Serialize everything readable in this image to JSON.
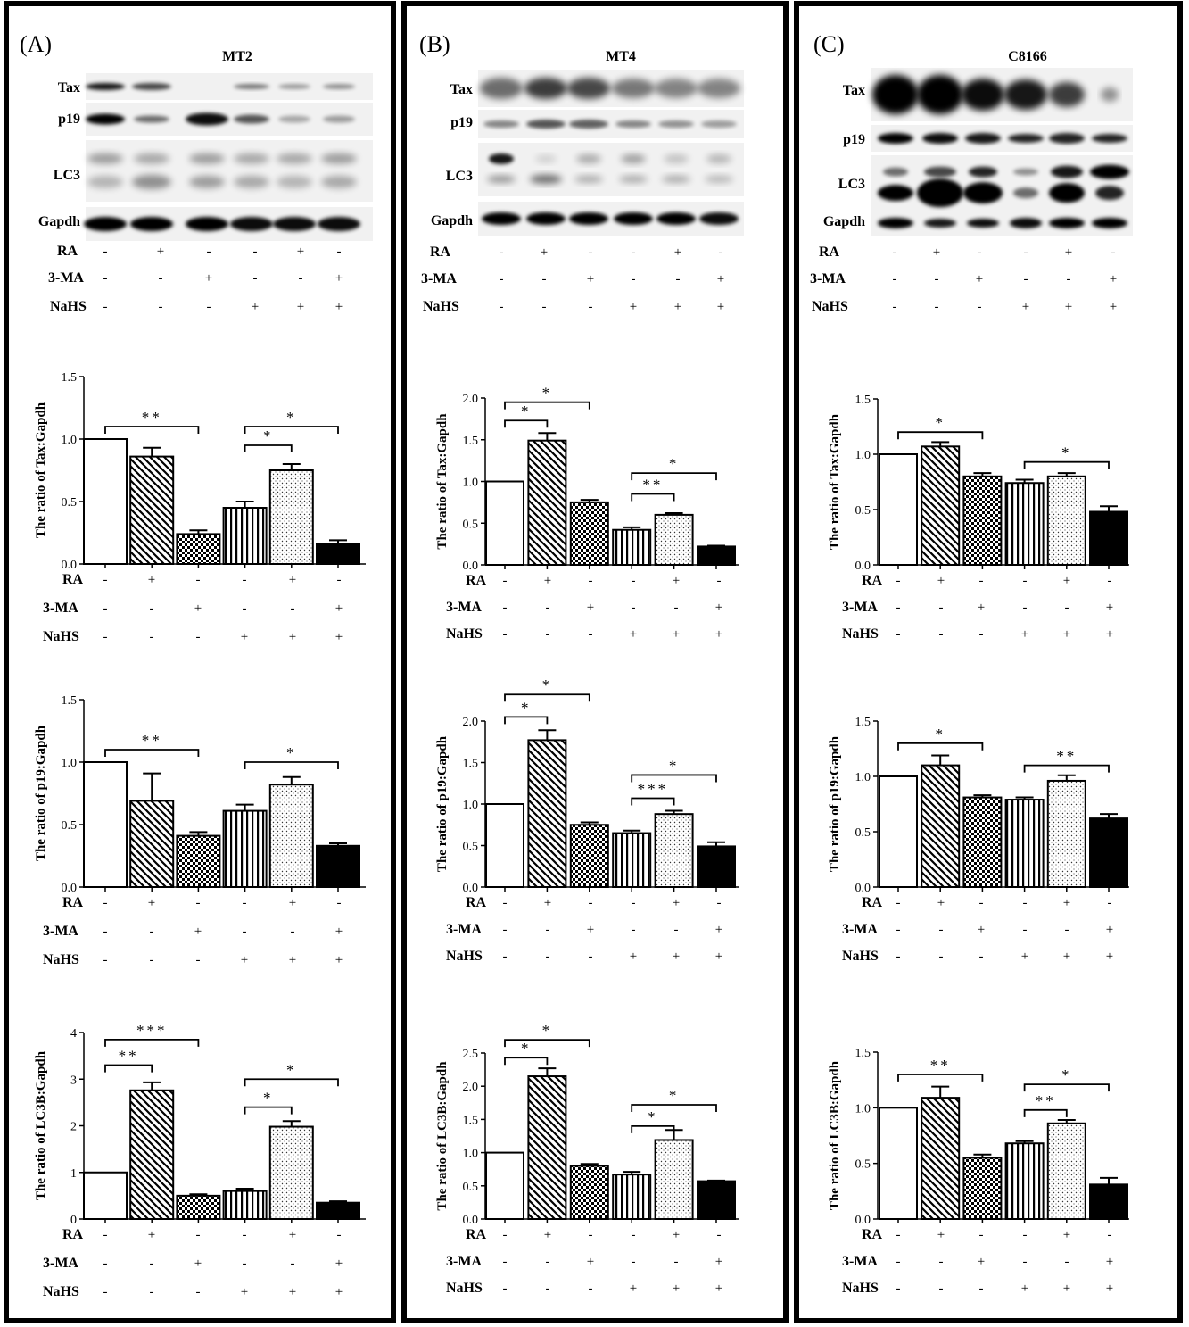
{
  "panels": [
    {
      "letter": "(A)",
      "cell_line": "MT2",
      "blot_labels": [
        "Tax",
        "p19",
        "LC3",
        "Gapdh"
      ],
      "treatment_labels": [
        "RA",
        "3-MA",
        "NaHS"
      ],
      "treatments": [
        [
          "-",
          "+",
          "-",
          "-",
          "+",
          "-"
        ],
        [
          "-",
          "-",
          "+",
          "-",
          "-",
          "+"
        ],
        [
          "-",
          "-",
          "-",
          "+",
          "+",
          "+"
        ]
      ]
    },
    {
      "letter": "(B)",
      "cell_line": "MT4",
      "blot_labels": [
        "Tax",
        "p19",
        "LC3",
        "Gapdh"
      ],
      "treatment_labels": [
        "RA",
        "3-MA",
        "NaHS"
      ],
      "treatments": [
        [
          "-",
          "+",
          "-",
          "-",
          "+",
          "-"
        ],
        [
          "-",
          "-",
          "+",
          "-",
          "-",
          "+"
        ],
        [
          "-",
          "-",
          "-",
          "+",
          "+",
          "+"
        ]
      ]
    },
    {
      "letter": "(C)",
      "cell_line": "C8166",
      "blot_labels": [
        "Tax",
        "p19",
        "LC3",
        "Gapdh"
      ],
      "treatment_labels": [
        "RA",
        "3-MA",
        "NaHS"
      ],
      "treatments": [
        [
          "-",
          "+",
          "-",
          "-",
          "+",
          "-"
        ],
        [
          "-",
          "-",
          "+",
          "-",
          "-",
          "+"
        ],
        [
          "-",
          "-",
          "-",
          "+",
          "+",
          "+"
        ]
      ]
    }
  ],
  "bar_fills": [
    "white",
    "diagonal-hatch",
    "checker",
    "vertical-stripes",
    "dotted",
    "black"
  ],
  "chart_data": [
    {
      "type": "bar",
      "panel": "(A)",
      "ylabel": "The ratio of Tax:Gapdh",
      "ylim": [
        0,
        1.5
      ],
      "yticks": [
        "0.0",
        "0.5",
        "1.0",
        "1.5"
      ],
      "values": [
        1.0,
        0.86,
        0.24,
        0.45,
        0.75,
        0.16
      ],
      "errors": [
        0,
        0.07,
        0.03,
        0.05,
        0.05,
        0.03
      ],
      "significance": [
        {
          "from": 1,
          "to": 3,
          "label": "**",
          "y": 1.1
        },
        {
          "from": 4,
          "to": 5,
          "label": "*",
          "y": 0.95
        },
        {
          "from": 4,
          "to": 6,
          "label": "*",
          "y": 1.1
        }
      ]
    },
    {
      "type": "bar",
      "panel": "(A)",
      "ylabel": "The ratio of p19:Gapdh",
      "ylim": [
        0,
        1.5
      ],
      "yticks": [
        "0.0",
        "0.5",
        "1.0",
        "1.5"
      ],
      "values": [
        1.0,
        0.69,
        0.41,
        0.61,
        0.82,
        0.33
      ],
      "errors": [
        0,
        0.22,
        0.03,
        0.05,
        0.06,
        0.02
      ],
      "significance": [
        {
          "from": 1,
          "to": 3,
          "label": "**",
          "y": 1.1
        },
        {
          "from": 4,
          "to": 6,
          "label": "*",
          "y": 1.0
        }
      ]
    },
    {
      "type": "bar",
      "panel": "(A)",
      "ylabel": "The ratio of LC3B:Gapdh",
      "ylim": [
        0,
        4
      ],
      "yticks": [
        "0",
        "1",
        "2",
        "3",
        "4"
      ],
      "values": [
        1.0,
        2.76,
        0.5,
        0.6,
        1.98,
        0.35
      ],
      "errors": [
        0,
        0.17,
        0.03,
        0.05,
        0.12,
        0.03
      ],
      "significance": [
        {
          "from": 1,
          "to": 2,
          "label": "**",
          "y": 3.3
        },
        {
          "from": 1,
          "to": 3,
          "label": "***",
          "y": 3.85
        },
        {
          "from": 4,
          "to": 5,
          "label": "*",
          "y": 2.4
        },
        {
          "from": 4,
          "to": 6,
          "label": "*",
          "y": 3.0
        }
      ]
    },
    {
      "type": "bar",
      "panel": "(B)",
      "ylabel": "The ratio of Tax:Gapdh",
      "ylim": [
        0,
        2.0
      ],
      "yticks": [
        "0.0",
        "0.5",
        "1.0",
        "1.5",
        "2.0"
      ],
      "values": [
        1.0,
        1.49,
        0.75,
        0.42,
        0.6,
        0.22
      ],
      "errors": [
        0,
        0.09,
        0.03,
        0.03,
        0.02,
        0.01
      ],
      "significance": [
        {
          "from": 1,
          "to": 2,
          "label": "*",
          "y": 1.73
        },
        {
          "from": 1,
          "to": 3,
          "label": "*",
          "y": 1.95
        },
        {
          "from": 4,
          "to": 5,
          "label": "**",
          "y": 0.85
        },
        {
          "from": 4,
          "to": 6,
          "label": "*",
          "y": 1.1
        }
      ]
    },
    {
      "type": "bar",
      "panel": "(B)",
      "ylabel": "The ratio of p19:Gapdh",
      "ylim": [
        0,
        2.0
      ],
      "yticks": [
        "0.0",
        "0.5",
        "1.0",
        "1.5",
        "2.0"
      ],
      "values": [
        1.0,
        1.77,
        0.75,
        0.65,
        0.88,
        0.49
      ],
      "errors": [
        0,
        0.12,
        0.03,
        0.03,
        0.04,
        0.05
      ],
      "significance": [
        {
          "from": 1,
          "to": 2,
          "label": "*",
          "y": 2.05
        },
        {
          "from": 1,
          "to": 3,
          "label": "*",
          "y": 2.32
        },
        {
          "from": 4,
          "to": 5,
          "label": "***",
          "y": 1.07
        },
        {
          "from": 4,
          "to": 6,
          "label": "*",
          "y": 1.35
        }
      ]
    },
    {
      "type": "bar",
      "panel": "(B)",
      "ylabel": "The ratio of LC3B:Gapdh",
      "ylim": [
        0,
        2.5
      ],
      "yticks": [
        "0.0",
        "0.5",
        "1.0",
        "1.5",
        "2.0",
        "2.5"
      ],
      "values": [
        1.0,
        2.15,
        0.8,
        0.67,
        1.19,
        0.57
      ],
      "errors": [
        0,
        0.12,
        0.03,
        0.04,
        0.15,
        0.01
      ],
      "significance": [
        {
          "from": 1,
          "to": 2,
          "label": "*",
          "y": 2.43
        },
        {
          "from": 1,
          "to": 3,
          "label": "*",
          "y": 2.7
        },
        {
          "from": 4,
          "to": 5,
          "label": "*",
          "y": 1.4
        },
        {
          "from": 4,
          "to": 6,
          "label": "*",
          "y": 1.72
        }
      ]
    },
    {
      "type": "bar",
      "panel": "(C)",
      "ylabel": "The ratio of Tax:Gapdh",
      "ylim": [
        0,
        1.5
      ],
      "yticks": [
        "0.0",
        "0.5",
        "1.0",
        "1.5"
      ],
      "values": [
        1.0,
        1.07,
        0.8,
        0.74,
        0.8,
        0.48
      ],
      "errors": [
        0,
        0.04,
        0.03,
        0.03,
        0.03,
        0.05
      ],
      "significance": [
        {
          "from": 1,
          "to": 3,
          "label": "*",
          "y": 1.2
        },
        {
          "from": 4,
          "to": 6,
          "label": "*",
          "y": 0.93
        }
      ]
    },
    {
      "type": "bar",
      "panel": "(C)",
      "ylabel": "The ratio of p19:Gapdh",
      "ylim": [
        0,
        1.5
      ],
      "yticks": [
        "0.0",
        "0.5",
        "1.0",
        "1.5"
      ],
      "values": [
        1.0,
        1.1,
        0.81,
        0.79,
        0.96,
        0.62
      ],
      "errors": [
        0,
        0.09,
        0.02,
        0.02,
        0.05,
        0.04
      ],
      "significance": [
        {
          "from": 1,
          "to": 3,
          "label": "*",
          "y": 1.3
        },
        {
          "from": 4,
          "to": 6,
          "label": "**",
          "y": 1.1
        }
      ]
    },
    {
      "type": "bar",
      "panel": "(C)",
      "ylabel": "The ratio of LC3B:Gapdh",
      "ylim": [
        0,
        1.5
      ],
      "yticks": [
        "0.0",
        "0.5",
        "1.0",
        "1.5"
      ],
      "values": [
        1.0,
        1.09,
        0.55,
        0.68,
        0.86,
        0.31
      ],
      "errors": [
        0,
        0.1,
        0.03,
        0.02,
        0.03,
        0.06
      ],
      "significance": [
        {
          "from": 1,
          "to": 3,
          "label": "**",
          "y": 1.3
        },
        {
          "from": 4,
          "to": 5,
          "label": "**",
          "y": 0.98
        },
        {
          "from": 4,
          "to": 6,
          "label": "*",
          "y": 1.21
        }
      ]
    }
  ]
}
